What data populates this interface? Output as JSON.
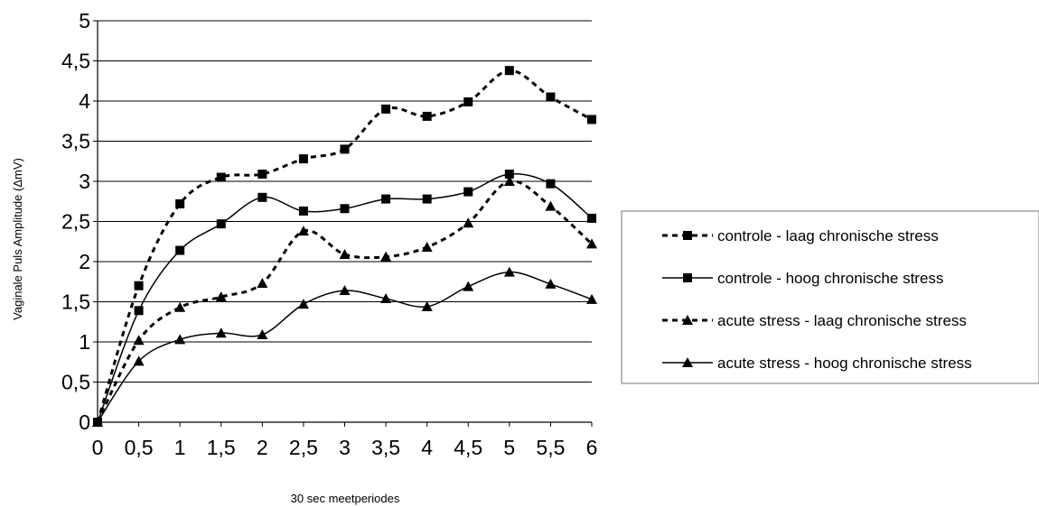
{
  "chart_data": {
    "type": "line",
    "title": "",
    "xlabel": "30 sec meetperiodes",
    "ylabel": "Vaginale Puls Amplitude (ΔmV)",
    "x": [
      0,
      0.5,
      1,
      1.5,
      2,
      2.5,
      3,
      3.5,
      4,
      4.5,
      5,
      5.5,
      6
    ],
    "x_tick_labels": [
      "0",
      "0,5",
      "1",
      "1,5",
      "2",
      "2,5",
      "3",
      "3,5",
      "4",
      "4,5",
      "5",
      "5,5",
      "6"
    ],
    "ylim": [
      0,
      5
    ],
    "y_ticks": [
      0,
      0.5,
      1,
      1.5,
      2,
      2.5,
      3,
      3.5,
      4,
      4.5,
      5
    ],
    "y_tick_labels": [
      "0",
      "0,5",
      "1",
      "1,5",
      "2",
      "2,5",
      "3",
      "3,5",
      "4",
      "4,5",
      "5"
    ],
    "grid": "horizontal",
    "legend_position": "right",
    "series": [
      {
        "name": "controle - laag chronische stress",
        "line_style": "dashed",
        "marker": "square",
        "values": [
          0,
          1.7,
          2.72,
          3.05,
          3.09,
          3.28,
          3.4,
          3.9,
          3.81,
          3.99,
          4.38,
          4.05,
          3.77
        ]
      },
      {
        "name": "controle - hoog chronische stress",
        "line_style": "solid",
        "marker": "square",
        "values": [
          0,
          1.39,
          2.14,
          2.47,
          2.8,
          2.63,
          2.66,
          2.78,
          2.78,
          2.87,
          3.09,
          2.97,
          2.54
        ]
      },
      {
        "name": "acute stress - laag chronische stress",
        "line_style": "dashed",
        "marker": "triangle",
        "values": [
          0,
          1.02,
          1.43,
          1.56,
          1.73,
          2.38,
          2.09,
          2.06,
          2.18,
          2.48,
          3.0,
          2.69,
          2.22
        ]
      },
      {
        "name": "acute stress - hoog chronische stress",
        "line_style": "solid",
        "marker": "triangle",
        "values": [
          0,
          0.76,
          1.03,
          1.11,
          1.09,
          1.47,
          1.64,
          1.54,
          1.44,
          1.69,
          1.87,
          1.72,
          1.53
        ]
      }
    ]
  }
}
